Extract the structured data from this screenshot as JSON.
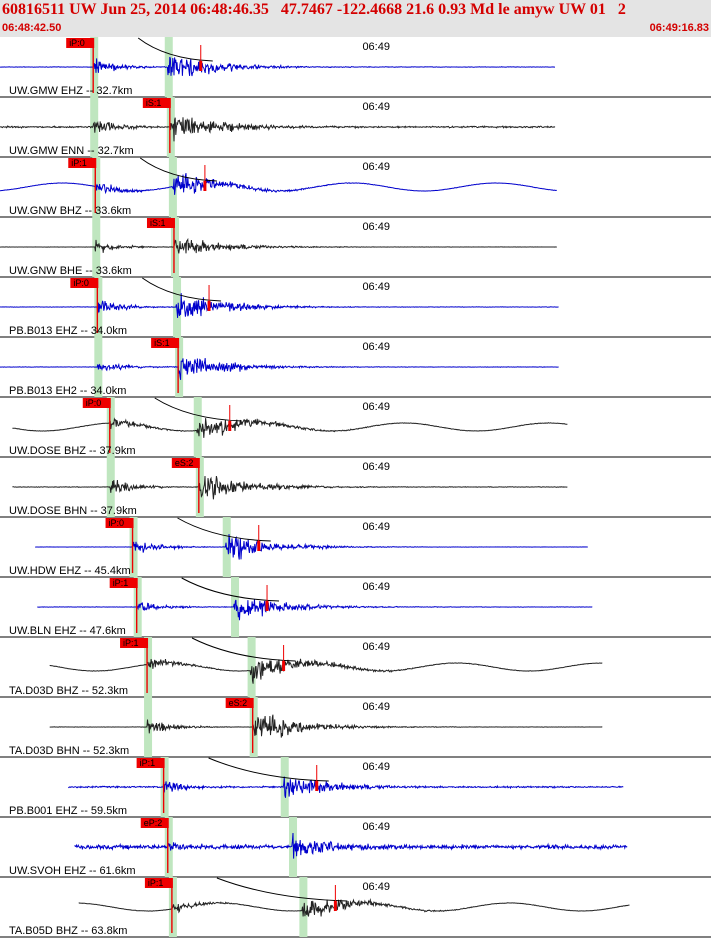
{
  "header": {
    "title": "60816511 UW Jun 25, 2014 06:48:46.35   47.7467 -122.4668 21.6 0.93 Md le amyw UW 01   2",
    "start_time": "06:48:42.50",
    "end_time": "06:49:16.83",
    "accent_color": "#d40000",
    "background_color": "#e4e4e4"
  },
  "chart_data": {
    "type": "line",
    "title": "60816511 UW Jun 25, 2014 06:48:46.35   47.7467 -122.4668 21.6 0.93 Md le amyw UW 01   2",
    "x_range": [
      "06:48:42.50",
      "06:49:16.83"
    ],
    "minute_mark_label": "06:49",
    "colors": {
      "vertical": "#0000cc",
      "horizontal": "#222222",
      "pick_flag": "#ee0000",
      "pick_window": "#bfe6bf",
      "theoretical_curve": "#000000"
    },
    "traces": [
      {
        "name": "UW.GMW EHZ -- 32.7km",
        "component": "vertical",
        "pick": "iP:0",
        "p_time": 4.5,
        "s_time": 8.1,
        "data_start": 0.0,
        "data_end": 26.8,
        "noise": 0.06,
        "amplitude": 0.55,
        "long_period": false,
        "show_curve": true
      },
      {
        "name": "UW.GMW ENN -- 32.7km",
        "component": "horizontal",
        "pick": "iS:1",
        "p_time": 4.5,
        "s_time": 8.2,
        "data_start": 0.0,
        "data_end": 26.8,
        "noise": 0.22,
        "amplitude": 0.6,
        "long_period": false,
        "show_curve": false
      },
      {
        "name": "UW.GNW BHZ -- 33.6km",
        "component": "vertical",
        "pick": "iP:1",
        "p_time": 4.6,
        "s_time": 8.3,
        "data_start": 0.0,
        "data_end": 26.9,
        "noise": 0.05,
        "amplitude": 0.45,
        "long_period": true,
        "show_curve": true
      },
      {
        "name": "UW.GNW BHE -- 33.6km",
        "component": "horizontal",
        "pick": "iS:1",
        "p_time": 4.6,
        "s_time": 8.4,
        "data_start": 0.0,
        "data_end": 26.9,
        "noise": 0.03,
        "amplitude": 0.4,
        "long_period": false,
        "show_curve": false
      },
      {
        "name": "PB.B013 EHZ -- 34.0km",
        "component": "vertical",
        "pick": "iP:0",
        "p_time": 4.7,
        "s_time": 8.5,
        "data_start": 0.0,
        "data_end": 27.0,
        "noise": 0.05,
        "amplitude": 0.55,
        "long_period": false,
        "show_curve": true
      },
      {
        "name": "PB.B013 EH2 -- 34.0km",
        "component": "vertical",
        "pick": "iS:1",
        "p_time": 4.7,
        "s_time": 8.6,
        "data_start": 0.0,
        "data_end": 27.0,
        "noise": 0.05,
        "amplitude": 0.5,
        "long_period": false,
        "show_curve": false
      },
      {
        "name": "UW.DOSE BHZ -- 37.9km",
        "component": "horizontal",
        "pick": "iP:0",
        "p_time": 5.3,
        "s_time": 9.5,
        "data_start": 0.6,
        "data_end": 27.4,
        "noise": 0.07,
        "amplitude": 0.5,
        "long_period": true,
        "show_curve": true
      },
      {
        "name": "UW.DOSE BHN -- 37.9km",
        "component": "horizontal",
        "pick": "eS:2",
        "p_time": 5.3,
        "s_time": 9.6,
        "data_start": 0.6,
        "data_end": 27.4,
        "noise": 0.07,
        "amplitude": 0.55,
        "long_period": false,
        "show_curve": false
      },
      {
        "name": "UW.HDW EHZ -- 45.4km",
        "component": "vertical",
        "pick": "iP:0",
        "p_time": 6.4,
        "s_time": 10.9,
        "data_start": 1.7,
        "data_end": 28.4,
        "noise": 0.03,
        "amplitude": 0.5,
        "long_period": false,
        "show_curve": true
      },
      {
        "name": "UW.BLN EHZ -- 47.6km",
        "component": "vertical",
        "pick": "iP:1",
        "p_time": 6.6,
        "s_time": 11.3,
        "data_start": 1.8,
        "data_end": 28.6,
        "noise": 0.05,
        "amplitude": 0.5,
        "long_period": false,
        "show_curve": true
      },
      {
        "name": "TA.D03D BHZ -- 52.3km",
        "component": "horizontal",
        "pick": "iP:1",
        "p_time": 7.1,
        "s_time": 12.1,
        "data_start": 2.4,
        "data_end": 29.1,
        "noise": 0.06,
        "amplitude": 0.55,
        "long_period": true,
        "show_curve": true
      },
      {
        "name": "TA.D03D BHN -- 52.3km",
        "component": "horizontal",
        "pick": "eS:2",
        "p_time": 7.1,
        "s_time": 12.2,
        "data_start": 2.4,
        "data_end": 29.1,
        "noise": 0.04,
        "amplitude": 0.55,
        "long_period": false,
        "show_curve": false
      },
      {
        "name": "PB.B001 EHZ -- 59.5km",
        "component": "vertical",
        "pick": "iP:1",
        "p_time": 7.9,
        "s_time": 13.7,
        "data_start": 3.3,
        "data_end": 30.1,
        "noise": 0.2,
        "amplitude": 0.5,
        "long_period": false,
        "show_curve": true
      },
      {
        "name": "UW.SVOH EHZ -- 61.6km",
        "component": "vertical",
        "pick": "eP:2",
        "p_time": 8.1,
        "s_time": 14.1,
        "data_start": 3.6,
        "data_end": 30.3,
        "noise": 0.55,
        "amplitude": 0.45,
        "long_period": false,
        "show_curve": false
      },
      {
        "name": "TA.B05D BHZ -- 63.8km",
        "component": "horizontal",
        "pick": "iP:1",
        "p_time": 8.3,
        "s_time": 14.6,
        "data_start": 3.8,
        "data_end": 30.4,
        "noise": 0.05,
        "amplitude": 0.45,
        "long_period": true,
        "show_curve": true
      }
    ]
  }
}
